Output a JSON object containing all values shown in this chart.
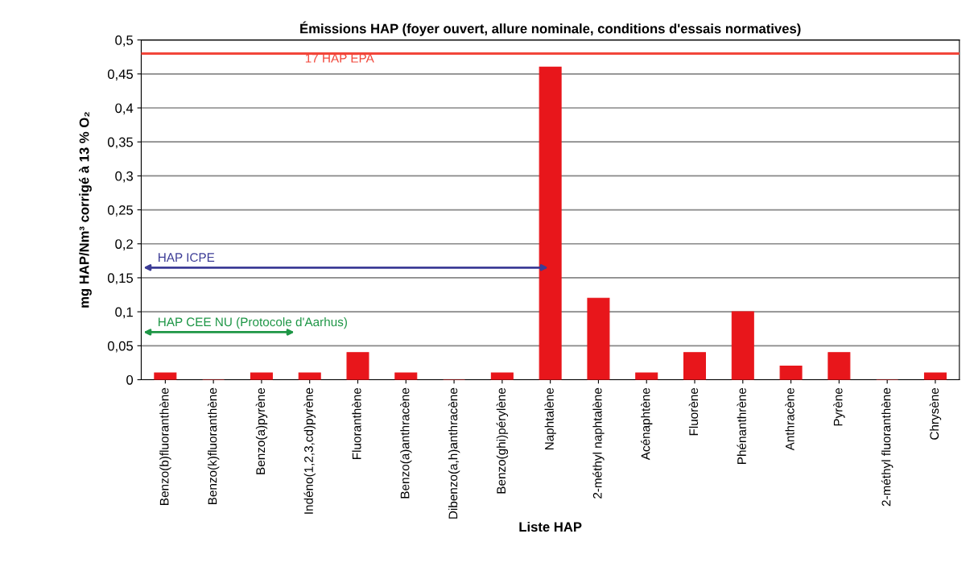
{
  "chart_data": {
    "type": "bar",
    "title": "Émissions HAP (foyer ouvert, allure nominale, conditions d'essais normatives)",
    "xlabel": "Liste HAP",
    "ylabel": "mg HAP/Nm³ corrigé à 13 % O₂",
    "categories": [
      "Benzo(b)fluoranthène",
      "Benzo(k)fluoranthène",
      "Benzo(a)pyrène",
      "Indéno(1,2,3,cd)pyrène",
      "Fluoranthène",
      "Benzo(a)anthracène",
      "Dibenzo(a,h)anthracène",
      "Benzo(ghi)pérylène",
      "Naphtalène",
      "2-méthyl naphtalène",
      "Acénaphtène",
      "Fluorène",
      "Phénanthrène",
      "Anthracène",
      "Pyrène",
      "2-méthyl fluoranthène",
      "Chrysène"
    ],
    "values": [
      0.01,
      0,
      0.01,
      0.01,
      0.04,
      0.01,
      0,
      0.01,
      0.46,
      0.12,
      0.01,
      0.04,
      0.1,
      0.02,
      0.04,
      0,
      0.01
    ],
    "color": "#e8161b",
    "ylim": [
      0,
      0.5
    ],
    "yticks": [
      0,
      {
        "value": 0.05,
        "label": "0,05"
      },
      {
        "value": 0.1,
        "label": "0,1"
      },
      {
        "value": 0.15,
        "label": "0,15"
      },
      {
        "value": 0.2,
        "label": "0,2"
      },
      {
        "value": 0.25,
        "label": "0,25"
      },
      {
        "value": 0.3,
        "label": "0,3"
      },
      {
        "value": 0.35,
        "label": "0,35"
      },
      {
        "value": 0.4,
        "label": "0,4"
      },
      {
        "value": 0.45,
        "label": "0,45"
      },
      {
        "value": 0.5,
        "label": "0,5"
      }
    ],
    "grid": "y",
    "ref_lines": [
      {
        "axis": "y",
        "value": 0.48,
        "label": "17 HAP EPA",
        "color": "#f2463a"
      }
    ],
    "annotations": [
      "HAP ICPE",
      "HAP CEE NU (Protocole d'Aarhus)"
    ]
  }
}
